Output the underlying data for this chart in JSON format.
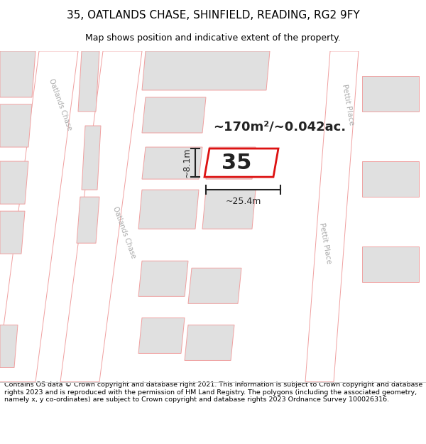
{
  "title_line1": "35, OATLANDS CHASE, SHINFIELD, READING, RG2 9FY",
  "title_line2": "Map shows position and indicative extent of the property.",
  "footer_text": "Contains OS data © Crown copyright and database right 2021. This information is subject to Crown copyright and database rights 2023 and is reproduced with the permission of HM Land Registry. The polygons (including the associated geometry, namely x, y co-ordinates) are subject to Crown copyright and database rights 2023 Ordnance Survey 100026316.",
  "map_bg": "#ffffff",
  "road_fill": "#ffffff",
  "road_outline": "#f0a0a0",
  "plot_outline_color": "#dd1111",
  "plot_fill": "#ffffff",
  "building_fill": "#e0e0e0",
  "building_outline": "#f0a0a0",
  "area_text": "~170m²/~0.042ac.",
  "plot_number": "35",
  "dim_width": "~25.4m",
  "dim_height": "~8.1m",
  "road_label": "Oatlands Chase",
  "road_label2": "Oatlands Chase",
  "right_label1": "Pettit Place",
  "right_label2": "Pettit Place",
  "label_color": "#aaaaaa",
  "dim_color": "#222222",
  "title_fontsize": 11,
  "subtitle_fontsize": 9,
  "footer_fontsize": 6.8
}
